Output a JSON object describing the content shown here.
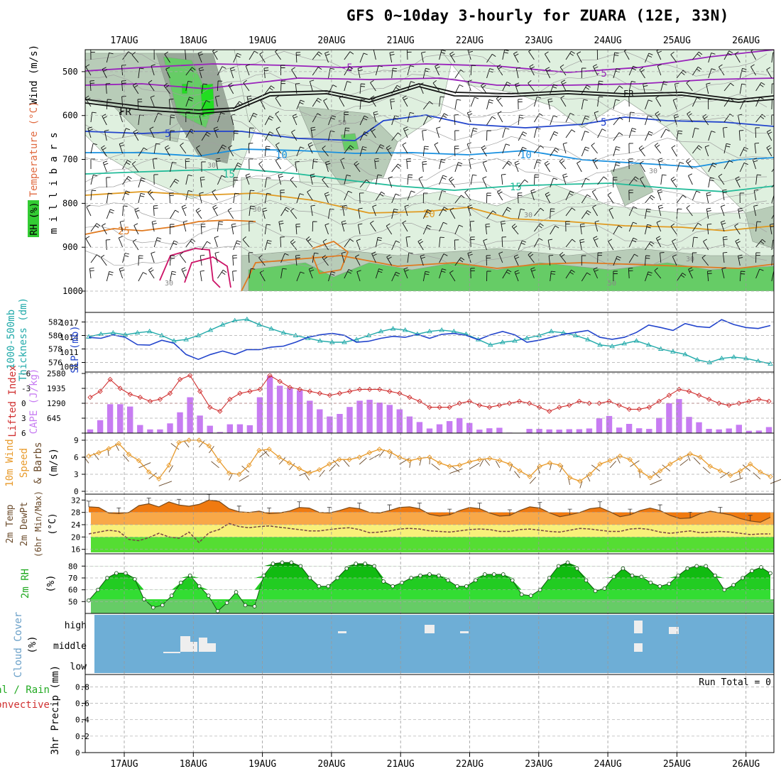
{
  "title": "GFS 0~10day 3-hourly for ZUARA (12E, 33N)",
  "dates": [
    "17AUG",
    "18AUG",
    "19AUG",
    "20AUG",
    "21AUG",
    "22AUG",
    "23AUG",
    "24AUG",
    "25AUG",
    "26AUG"
  ],
  "colors": {
    "rh_light": "#dff0df",
    "rh_mid": "#b8ccb8",
    "rh_grey": "#9aa89a",
    "rh_green": "#66cc66",
    "rh_bright": "#22dd22",
    "thickness": "#22aaaa",
    "slp": "#2244cc",
    "cape": "#c77cf2",
    "lifted": "#d03030",
    "wind10": "#e89a2a",
    "temp_orange": "#f07a10",
    "temp_lightorange": "#f8a848",
    "dew_yellow": "#f8f07a",
    "dew_green": "#55dd33",
    "rh_green2": "#11cc11",
    "cloud_bg": "#6eaed6"
  },
  "chart_data": [
    {
      "panel": "upper_air",
      "type": "contour",
      "ylabel_parts": [
        "Wind (m/s)",
        "Temperature (°C)",
        "RH (%)",
        "m i l l i b a r s"
      ],
      "yticks": [
        500,
        600,
        700,
        800,
        900,
        1000
      ],
      "ylim": [
        1000,
        450
      ],
      "isotherms": [
        {
          "label": "-5",
          "level_hint": [
            470,
            500
          ]
        },
        {
          "label": "FR",
          "level_hint": [
            600,
            560
          ]
        },
        {
          "label": "5",
          "level_hint": [
            640,
            620
          ]
        },
        {
          "label": "10",
          "level_hint": [
            700,
            690
          ]
        },
        {
          "label": "15",
          "level_hint": [
            745,
            730
          ]
        },
        {
          "label": "20",
          "level_hint": [
            800,
            790
          ]
        },
        {
          "label": "25",
          "level_hint": [
            870,
            860
          ]
        }
      ],
      "rh_contour_labels": [
        "30",
        "50"
      ]
    },
    {
      "panel": "thickness_slp",
      "type": "line",
      "ylabel_parts": [
        "1000-500mb",
        "Thickness (dm)",
        "SLP (mb)"
      ],
      "thickness_ticks": [
        576,
        578,
        580,
        582
      ],
      "slp_ticks": [
        1008,
        1011,
        1014,
        1017
      ],
      "series": [
        {
          "name": "Thickness (dm)",
          "values": [
            579.8,
            580.2,
            580.4,
            580.1,
            580.4,
            580.6,
            580.0,
            579.2,
            579.4,
            580.0,
            580.8,
            581.6,
            582.2,
            582.4,
            581.6,
            581.0,
            580.4,
            580.0,
            579.6,
            579.2,
            579.0,
            579.0,
            579.4,
            580.0,
            580.6,
            581.0,
            580.8,
            580.2,
            580.6,
            580.8,
            580.6,
            580.2,
            579.4,
            578.6,
            579.0,
            579.2,
            579.6,
            580.0,
            580.6,
            580.4,
            580.0,
            579.4,
            578.6,
            578.4,
            578.8,
            579.2,
            578.6,
            578.0,
            577.6,
            577.2,
            576.4,
            576.0,
            576.6,
            576.8,
            576.6,
            576.2,
            575.8
          ]
        },
        {
          "name": "SLP (mb)",
          "values": [
            1014.0,
            1013.8,
            1014.5,
            1014.0,
            1012.5,
            1012.4,
            1013.4,
            1012.8,
            1010.5,
            1009.5,
            1010.5,
            1011.2,
            1010.5,
            1011.5,
            1011.5,
            1012.0,
            1012.2,
            1013.0,
            1014.0,
            1014.5,
            1014.8,
            1014.4,
            1013.0,
            1013.2,
            1013.8,
            1014.2,
            1014.0,
            1014.6,
            1013.8,
            1014.6,
            1014.8,
            1014.4,
            1013.5,
            1014.5,
            1015.2,
            1014.5,
            1013.0,
            1013.4,
            1014.0,
            1014.6,
            1015.0,
            1015.4,
            1014.0,
            1013.6,
            1014.0,
            1015.0,
            1016.5,
            1016.0,
            1015.4,
            1016.8,
            1016.2,
            1016.0,
            1017.6,
            1016.6,
            1016.0,
            1015.8,
            1016.4
          ]
        }
      ]
    },
    {
      "panel": "cape_lifted",
      "type": "bar",
      "ylabel_parts": [
        "Lifted Index",
        "CAPE (J/kg)"
      ],
      "cape_ticks": [
        645,
        1290,
        1935,
        2580
      ],
      "li_ticks": [
        -6,
        -3,
        0,
        3,
        6
      ],
      "series": [
        {
          "name": "CAPE (J/kg)",
          "values": [
            160,
            560,
            1250,
            1250,
            1150,
            350,
            160,
            160,
            420,
            900,
            1550,
            760,
            320,
            50,
            380,
            380,
            340,
            1550,
            2470,
            2050,
            1950,
            1850,
            1400,
            1030,
            720,
            830,
            1130,
            1400,
            1440,
            1320,
            1220,
            1030,
            720,
            480,
            200,
            380,
            520,
            650,
            440,
            150,
            210,
            230,
            20,
            0,
            180,
            180,
            160,
            150,
            170,
            170,
            200,
            640,
            740,
            240,
            400,
            210,
            180,
            660,
            1290,
            1470,
            700,
            470,
            180,
            160,
            200,
            360,
            100,
            110,
            260
          ]
        },
        {
          "name": "Lifted Index",
          "values": [
            -1.2,
            -2.4,
            -4.8,
            -3.0,
            -1.8,
            -1.2,
            -0.4,
            -0.8,
            -2.0,
            -4.8,
            -5.6,
            -2.4,
            0.8,
            1.6,
            -0.8,
            -2.0,
            -2.4,
            -2.8,
            -5.6,
            -4.4,
            -3.2,
            -2.8,
            -2.4,
            -2.0,
            -1.6,
            -2.0,
            -2.4,
            -2.8,
            -2.8,
            -2.8,
            -2.4,
            -2.0,
            -1.2,
            -0.4,
            0.8,
            0.8,
            0.8,
            0.0,
            -0.4,
            0.4,
            0.8,
            0.4,
            0.0,
            -0.4,
            0.0,
            0.8,
            1.6,
            0.8,
            0.4,
            -0.4,
            0.0,
            0.0,
            -0.4,
            0.4,
            1.2,
            1.2,
            0.8,
            -0.4,
            -1.6,
            -2.8,
            -2.4,
            -1.6,
            -0.8,
            0.0,
            0.4,
            0.0,
            -0.4,
            -0.8,
            -0.4
          ]
        }
      ]
    },
    {
      "panel": "wind10m",
      "type": "line",
      "ylabel_parts": [
        "10m Wind",
        "Speed",
        "& Barbs",
        "(m/s)"
      ],
      "yticks": [
        0,
        3,
        6,
        9
      ],
      "series": [
        {
          "name": "Speed",
          "values": [
            6.2,
            6.8,
            7.5,
            8.4,
            6.5,
            5.4,
            3.4,
            2.2,
            4.6,
            8.6,
            9.0,
            9.0,
            8.0,
            5.4,
            3.2,
            3.0,
            4.6,
            7.2,
            7.4,
            6.0,
            5.0,
            4.0,
            3.2,
            3.8,
            4.8,
            5.6,
            5.6,
            6.0,
            6.8,
            7.4,
            7.0,
            6.0,
            5.4,
            5.8,
            6.0,
            5.0,
            4.4,
            4.6,
            5.2,
            5.6,
            5.8,
            5.4,
            4.8,
            3.6,
            2.6,
            4.4,
            5.0,
            4.6,
            2.4,
            1.8,
            3.0,
            4.8,
            5.4,
            6.2,
            5.6,
            3.6,
            2.4,
            3.6,
            4.8,
            5.8,
            6.6,
            6.0,
            4.4,
            3.6,
            2.8,
            3.6,
            4.8,
            3.4,
            2.6
          ]
        }
      ]
    },
    {
      "panel": "temp2m",
      "type": "area",
      "ylabel_parts": [
        "2m Temp",
        "2m DewPt",
        "(6hr Min/Max)",
        "(°C)"
      ],
      "yticks": [
        16,
        20,
        24,
        28,
        32
      ],
      "series": [
        {
          "name": "2m Temp",
          "values": [
            29.8,
            29.6,
            27.8,
            27.6,
            28.0,
            30.2,
            30.8,
            29.8,
            31.4,
            30.4,
            30.0,
            30.6,
            32.0,
            31.6,
            29.2,
            28.2,
            28.0,
            28.4,
            27.6,
            27.8,
            28.4,
            29.6,
            29.4,
            28.0,
            27.8,
            28.6,
            29.6,
            29.2,
            28.0,
            27.8,
            28.6,
            29.6,
            29.8,
            29.2,
            27.4,
            26.8,
            27.2,
            28.6,
            29.6,
            29.2,
            27.8,
            26.8,
            27.0,
            28.6,
            29.8,
            29.4,
            27.8,
            26.6,
            27.2,
            28.0,
            29.2,
            29.6,
            28.2,
            26.6,
            27.2,
            28.6,
            29.4,
            28.6,
            27.0,
            26.0,
            26.2,
            27.6,
            28.4,
            27.8,
            27.2,
            26.0,
            25.2,
            24.8,
            26.4
          ]
        },
        {
          "name": "2m DewPt",
          "values": [
            21.0,
            21.6,
            22.2,
            21.8,
            19.2,
            18.8,
            19.8,
            21.2,
            20.0,
            19.6,
            21.6,
            18.2,
            21.4,
            22.4,
            24.4,
            23.4,
            23.0,
            23.4,
            23.6,
            23.2,
            22.8,
            22.4,
            22.0,
            22.0,
            22.4,
            22.8,
            23.0,
            22.4,
            21.4,
            21.6,
            22.0,
            22.6,
            22.8,
            22.6,
            22.0,
            21.8,
            21.6,
            22.0,
            22.4,
            22.6,
            22.4,
            21.8,
            21.8,
            22.4,
            22.6,
            22.2,
            21.8,
            21.6,
            22.2,
            22.8,
            22.6,
            22.2,
            21.8,
            21.8,
            22.6,
            22.8,
            22.4,
            21.6,
            21.2,
            21.6,
            22.0,
            21.4,
            21.6,
            21.8,
            21.6,
            21.2,
            20.8,
            21.0,
            21.0
          ]
        }
      ]
    },
    {
      "panel": "rh2m",
      "type": "area",
      "ylabel_parts": [
        "2m RH",
        "(%)"
      ],
      "yticks": [
        50,
        60,
        70,
        80
      ],
      "series": [
        {
          "name": "2m RH",
          "values": [
            51,
            60,
            70,
            74,
            74,
            69,
            52,
            45,
            47,
            55,
            66,
            72,
            63,
            55,
            42,
            49,
            58,
            47,
            46,
            72,
            82,
            83,
            83,
            80,
            70,
            63,
            63,
            70,
            78,
            82,
            82,
            80,
            67,
            63,
            66,
            70,
            72,
            73,
            72,
            68,
            63,
            63,
            68,
            73,
            73,
            73,
            68,
            56,
            55,
            60,
            70,
            80,
            83,
            78,
            68,
            59,
            61,
            71,
            78,
            72,
            71,
            66,
            63,
            65,
            72,
            78,
            80,
            80,
            72,
            60,
            64,
            70,
            76,
            79,
            74
          ]
        }
      ]
    },
    {
      "panel": "cloud",
      "type": "heatmap",
      "ylabel_parts": [
        "Cloud Cover",
        "(%)"
      ],
      "levels": [
        "high",
        "middle",
        "low"
      ]
    },
    {
      "panel": "precip",
      "type": "bar",
      "ylabel_parts": [
        "3hr Precip (mm)",
        "Total / Rain",
        "Convective"
      ],
      "yticks": [
        0,
        0.2,
        0.4,
        0.6,
        0.8
      ],
      "run_total": "Run Total = 0",
      "values": []
    }
  ]
}
